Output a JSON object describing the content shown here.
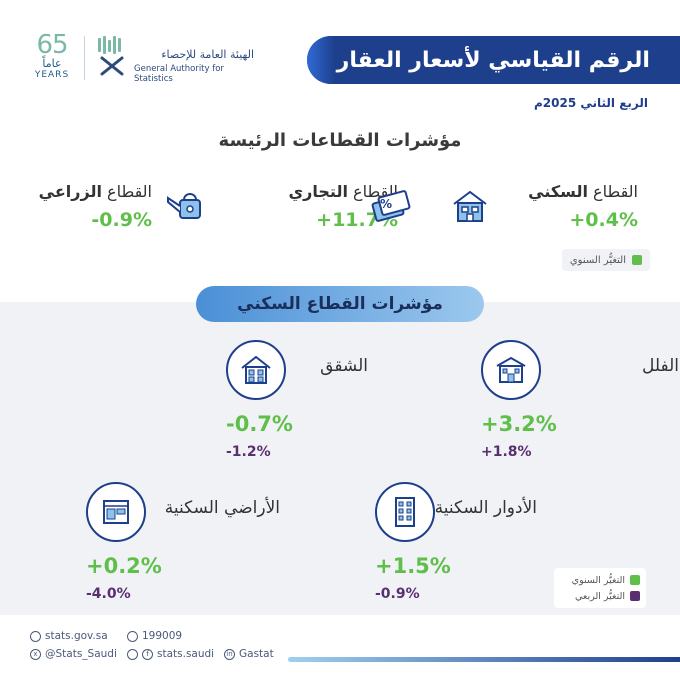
{
  "header": {
    "title": "الرقم القياسي لأسعار العقارات",
    "quarter": "الربع الثاني 2025م",
    "logo_number": "65",
    "logo_ar": "عاماً",
    "logo_years": "YEARS",
    "org_ar": "الهيئة العامة للإحصاء",
    "org_en": "General Authority for Statistics"
  },
  "main": {
    "heading": "مؤشرات القطاعات الرئيسة",
    "sectors": [
      {
        "label_prefix": "القطاع",
        "label_bold": "السكني",
        "value": "+0.4%",
        "icon": "house-icon"
      },
      {
        "label_prefix": "القطاع",
        "label_bold": "التجاري",
        "value": "+11.7%",
        "icon": "money-icon"
      },
      {
        "label_prefix": "القطاع",
        "label_bold": "الزراعي",
        "value": "-0.9%",
        "icon": "watering-can-icon"
      }
    ],
    "legend_annual": "التغيُّر السنوي"
  },
  "residential": {
    "heading": "مؤشرات القطاع السكني",
    "items": [
      {
        "label": "الفلل",
        "annual": "+3.2%",
        "quarterly": "+1.8%",
        "icon": "villa-icon"
      },
      {
        "label": "الشقق",
        "annual": "-0.7%",
        "quarterly": "-1.2%",
        "icon": "apartment-icon"
      },
      {
        "label": "الأدوار السكنية",
        "annual": "+1.5%",
        "quarterly": "-0.9%",
        "icon": "building-icon"
      },
      {
        "label": "الأراضي السكنية",
        "annual": "+0.2%",
        "quarterly": "-4.0%",
        "icon": "land-plan-icon"
      }
    ],
    "legend": {
      "annual": "التغيُّر السنوي",
      "quarterly": "التغيُّر الربعي"
    }
  },
  "footer": {
    "website": "stats.gov.sa",
    "phone": "199009",
    "x_handle": "@Stats_Saudi",
    "social": "stats.saudi",
    "linkedin": "Gastat"
  },
  "colors": {
    "navy": "#1e3f8c",
    "annual_green": "#5fbf4a",
    "quarterly_purple": "#5a2f72"
  }
}
